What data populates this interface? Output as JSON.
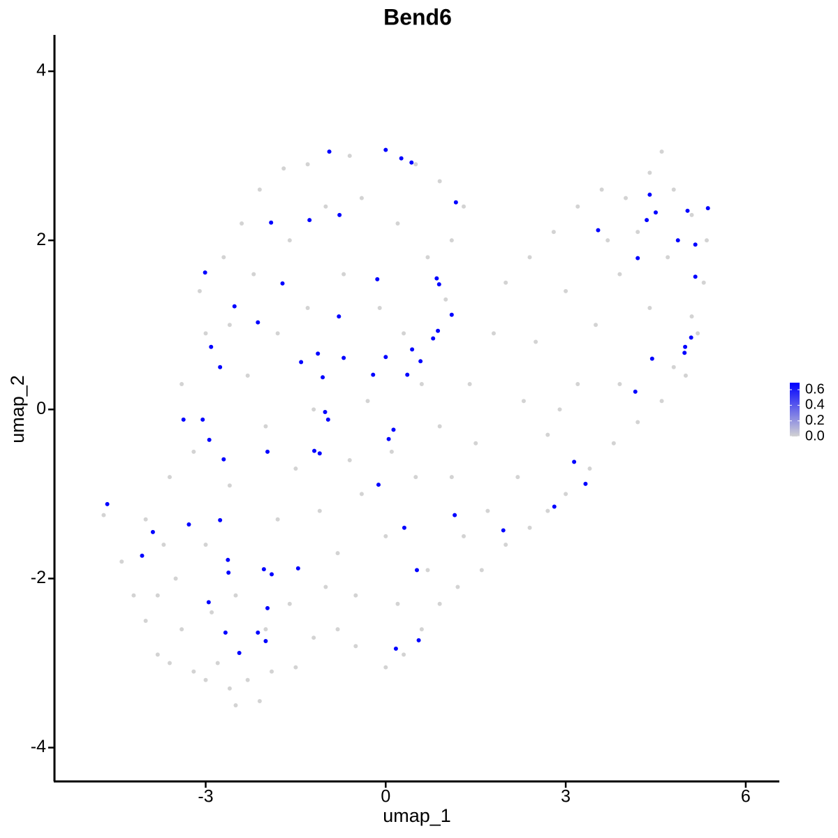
{
  "chart_data": {
    "type": "scatter",
    "title": "Bend6",
    "x_label": "umap_1",
    "y_label": "umap_2",
    "xlim": [
      -5.52,
      6.56
    ],
    "ylim": [
      -4.4,
      4.43
    ],
    "xticks": [
      -3,
      0,
      3,
      6
    ],
    "yticks": [
      -4,
      -2,
      0,
      2,
      4
    ],
    "colorbar": {
      "lim": [
        0,
        0.69
      ],
      "ticks": [
        {
          "value": 0,
          "label": "0.0"
        },
        0.2,
        0.4,
        0.6
      ],
      "low": "#d3d3d3",
      "high": "#0000ff"
    },
    "series": [
      {
        "x": [
          -4.7,
          -4.4,
          -4.2,
          -4.0,
          -3.8,
          -3.6,
          -3.4,
          -3.2,
          -3.0,
          -2.8,
          -2.6,
          -2.5,
          -2.3,
          -2.1,
          -1.9,
          -1.5,
          -1.2,
          -0.8,
          -0.5,
          0,
          0.3,
          0.6,
          0.9,
          1.2,
          1.6,
          2.0,
          2.4,
          2.7,
          3.0,
          3.4,
          3.8,
          4.2,
          4.6,
          5.0,
          5.2,
          -4.0,
          -3.7,
          -3.5,
          -3.0,
          -2.5,
          -2.0,
          -1.6,
          -1.0,
          -0.5,
          0.2,
          0.7,
          1.3,
          -3.6,
          -3.2,
          -3.4,
          -3.0,
          -3.1,
          -2.7,
          -2.4,
          -2.1,
          -1.7,
          -1.3,
          -0.6,
          0.5,
          0.9,
          1.3,
          1.1,
          0.7,
          0.2,
          -0.4,
          -1.0,
          -1.6,
          -2.2,
          -2.6,
          -2.3,
          -2.0,
          -2.6,
          -1.5,
          -1.1,
          -0.6,
          -0.3,
          0.3,
          0.5,
          0.9,
          1.4,
          1.8,
          2.0,
          2.4,
          2.8,
          3.2,
          3.6,
          4.0,
          4.4,
          4.6,
          4.8,
          5.1,
          5.35,
          5.3,
          5.1,
          4.8,
          4.4,
          3.9,
          3.5,
          3.2,
          2.7,
          2.2,
          1.7,
          1.1,
          0.6,
          -0.8,
          -1.8,
          -2.9,
          -3.8,
          -1.3,
          -0.7,
          -0.1,
          1.0,
          2.5,
          3.0,
          4.2,
          4.7,
          3.7,
          0.0,
          -0.4,
          1.5,
          2.9,
          3.9,
          2.3,
          -1.8,
          -1.2,
          0.1
        ],
        "y": [
          -1.25,
          -1.8,
          -2.2,
          -2.5,
          -2.9,
          -3.0,
          -2.6,
          -3.1,
          -3.2,
          -3.0,
          -3.3,
          -3.5,
          -3.2,
          -3.45,
          -3.1,
          -3.05,
          -2.7,
          -2.6,
          -2.8,
          -3.05,
          -2.9,
          -2.6,
          -2.3,
          -2.1,
          -1.9,
          -1.6,
          -1.4,
          -1.2,
          -1.0,
          -0.7,
          -0.4,
          -0.15,
          0.1,
          0.4,
          0.9,
          -1.3,
          -1.6,
          -2.0,
          -1.6,
          -2.2,
          -2.6,
          -2.3,
          -2.1,
          -2.2,
          -2.3,
          -1.9,
          -1.5,
          -0.8,
          -0.5,
          0.3,
          0.9,
          1.4,
          1.8,
          2.2,
          2.6,
          2.85,
          2.9,
          3.0,
          2.9,
          2.7,
          2.4,
          2.0,
          1.8,
          2.2,
          2.5,
          2.4,
          2.0,
          1.6,
          1.0,
          0.4,
          -0.2,
          -0.9,
          -0.7,
          -1.2,
          -0.6,
          0.1,
          0.9,
          -0.8,
          -0.2,
          0.3,
          0.9,
          1.5,
          1.8,
          2.1,
          2.4,
          2.6,
          2.5,
          2.8,
          3.05,
          2.6,
          2.3,
          2.0,
          1.5,
          1.1,
          0.5,
          1.2,
          1.6,
          1.0,
          0.3,
          -0.3,
          -0.8,
          -1.2,
          -0.8,
          0.3,
          -1.7,
          -1.3,
          -2.4,
          -2.2,
          1.2,
          1.6,
          1.2,
          1.3,
          0.8,
          1.4,
          2.1,
          1.8,
          2.0,
          -1.5,
          -1.0,
          -0.4,
          0.0,
          0.3,
          0.1,
          0.9,
          0.0,
          -0.5
        ],
        "values": [
          0,
          0,
          0,
          0,
          0,
          0,
          0,
          0,
          0,
          0,
          0,
          0,
          0,
          0,
          0,
          0,
          0,
          0,
          0,
          0,
          0,
          0,
          0,
          0,
          0,
          0,
          0,
          0,
          0,
          0,
          0,
          0,
          0,
          0,
          0,
          0,
          0,
          0,
          0,
          0,
          0,
          0,
          0,
          0,
          0,
          0,
          0,
          0,
          0,
          0,
          0,
          0,
          0,
          0,
          0,
          0,
          0,
          0,
          0,
          0,
          0,
          0,
          0,
          0,
          0,
          0,
          0,
          0,
          0,
          0,
          0,
          0,
          0,
          0,
          0,
          0,
          0,
          0,
          0,
          0,
          0,
          0,
          0,
          0,
          0,
          0,
          0,
          0,
          0,
          0,
          0,
          0,
          0,
          0,
          0,
          0,
          0,
          0,
          0,
          0,
          0,
          0,
          0,
          0,
          0,
          0,
          0,
          0,
          0,
          0,
          0,
          0,
          0,
          0,
          0,
          0,
          0,
          0,
          0,
          0,
          0,
          0,
          0,
          0,
          0,
          0
        ]
      },
      {
        "x": [
          -4.64,
          -4.06,
          -3.88,
          -3.28,
          -3.37,
          -3.05,
          -2.94,
          -3.01,
          -2.91,
          -2.76,
          -2.7,
          -2.76,
          -2.63,
          -2.62,
          -2.95,
          -2.67,
          -2.44,
          -2.13,
          -2.0,
          -1.97,
          -2.03,
          -1.9,
          -1.46,
          -1.97,
          -2.52,
          -2.13,
          -1.72,
          -1.91,
          -1.27,
          -0.77,
          -0.94,
          0.0,
          0.26,
          0.43,
          1.17,
          -0.14,
          -0.78,
          0.85,
          0.89,
          1.1,
          0.87,
          0.79,
          0.44,
          0.58,
          0.36,
          0.0,
          -0.21,
          -1.13,
          -1.41,
          -0.7,
          -1.05,
          -1.01,
          -0.96,
          -1.19,
          -1.1,
          0.13,
          0.05,
          -0.12,
          0.31,
          1.15,
          0.52,
          0.17,
          0.55,
          1.96,
          2.81,
          3.14,
          3.33,
          3.54,
          4.2,
          4.16,
          4.44,
          4.4,
          4.5,
          4.35,
          4.87,
          5.03,
          5.16,
          5.16,
          5.37,
          5.09,
          4.99,
          4.98
        ],
        "y": [
          -1.12,
          -1.73,
          -1.45,
          -1.36,
          -0.12,
          -0.12,
          -0.36,
          1.62,
          0.74,
          0.5,
          -0.59,
          -1.31,
          -1.78,
          -1.93,
          -2.28,
          -2.64,
          -2.88,
          -2.64,
          -2.74,
          -2.35,
          -1.89,
          -1.95,
          -1.88,
          -0.5,
          1.22,
          1.03,
          1.49,
          2.21,
          2.24,
          2.3,
          3.05,
          3.07,
          2.97,
          2.92,
          2.45,
          1.54,
          1.1,
          1.55,
          1.48,
          1.12,
          0.93,
          0.84,
          0.71,
          0.57,
          0.41,
          0.62,
          0.41,
          0.66,
          0.56,
          0.61,
          0.38,
          -0.03,
          -0.12,
          -0.49,
          -0.52,
          -0.24,
          -0.35,
          -0.89,
          -1.4,
          -1.25,
          -1.9,
          -2.83,
          -2.73,
          -1.43,
          -1.15,
          -0.62,
          -0.88,
          2.12,
          1.79,
          0.21,
          0.6,
          2.54,
          2.33,
          2.24,
          2.0,
          2.35,
          1.95,
          1.57,
          2.38,
          0.85,
          0.74,
          0.67
        ],
        "values": [
          0.69,
          0.69,
          0.69,
          0.69,
          0.69,
          0.69,
          0.69,
          0.69,
          0.69,
          0.69,
          0.69,
          0.69,
          0.69,
          0.69,
          0.69,
          0.69,
          0.69,
          0.69,
          0.69,
          0.69,
          0.69,
          0.69,
          0.69,
          0.69,
          0.69,
          0.69,
          0.69,
          0.69,
          0.69,
          0.69,
          0.69,
          0.69,
          0.69,
          0.69,
          0.69,
          0.69,
          0.69,
          0.69,
          0.69,
          0.69,
          0.69,
          0.69,
          0.69,
          0.69,
          0.69,
          0.69,
          0.69,
          0.69,
          0.69,
          0.69,
          0.69,
          0.69,
          0.69,
          0.69,
          0.69,
          0.69,
          0.69,
          0.69,
          0.69,
          0.69,
          0.69,
          0.69,
          0.69,
          0.69,
          0.69,
          0.69,
          0.69,
          0.69,
          0.69,
          0.69,
          0.69,
          0.69,
          0.69,
          0.69,
          0.69,
          0.69,
          0.69,
          0.69,
          0.69,
          0.69,
          0.69,
          0.69
        ]
      }
    ]
  }
}
